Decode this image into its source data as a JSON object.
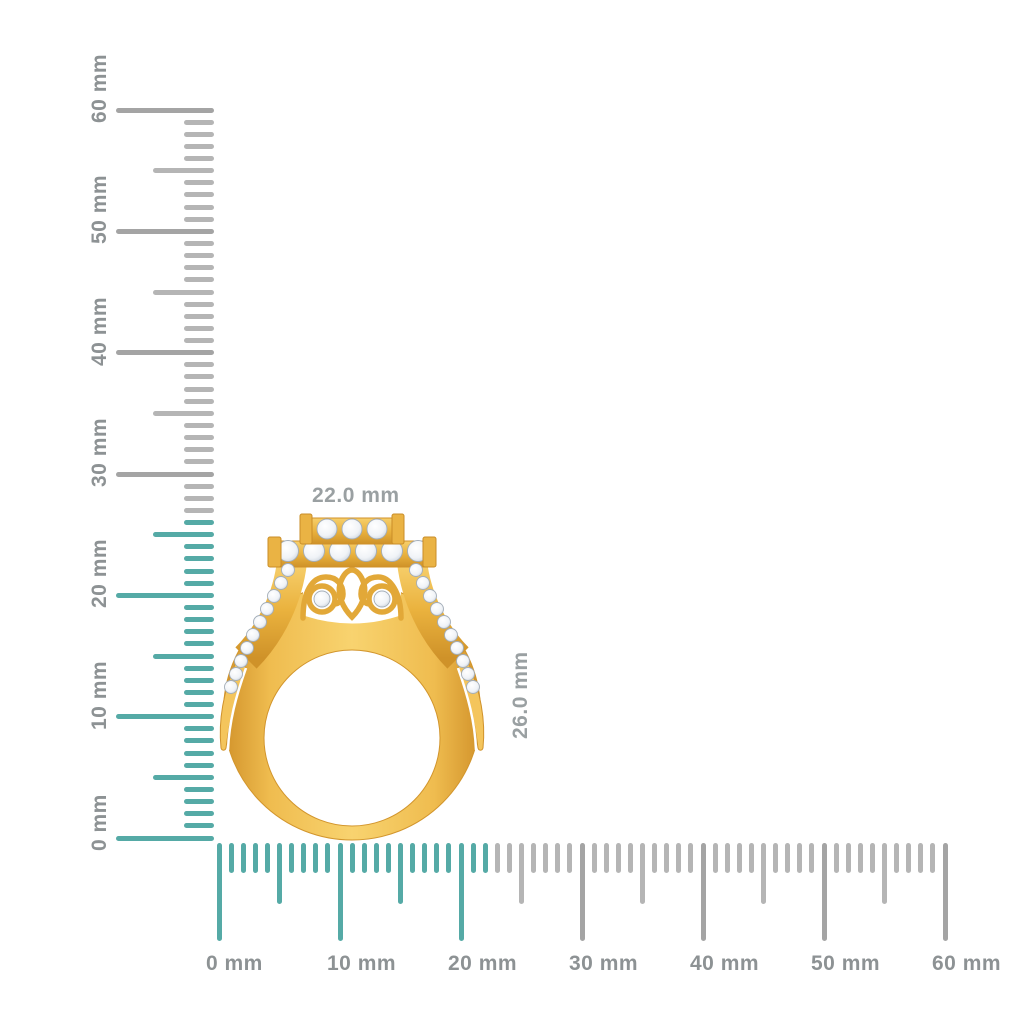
{
  "page": {
    "background": "#ffffff"
  },
  "dimension_labels": {
    "width": "22.0 mm",
    "height": "26.0 mm"
  },
  "rulers": {
    "unit": "mm",
    "vertical": {
      "orientation": "vertical",
      "min_mm": 0,
      "max_mm": 60,
      "minor_step_mm": 1,
      "medium_step_mm": 5,
      "major_step_mm": 10,
      "highlighted_range_mm": [
        0,
        26
      ],
      "labels": [
        "0 mm",
        "10 mm",
        "20 mm",
        "30 mm",
        "40 mm",
        "50 mm",
        "60 mm"
      ]
    },
    "horizontal": {
      "orientation": "horizontal",
      "min_mm": 0,
      "max_mm": 60,
      "minor_step_mm": 1,
      "medium_step_mm": 5,
      "major_step_mm": 10,
      "highlighted_range_mm": [
        0,
        22
      ],
      "labels": [
        "0 mm",
        "10 mm",
        "20 mm",
        "30 mm",
        "40 mm",
        "50 mm",
        "60 mm"
      ]
    },
    "colors": {
      "highlight": "#55aaa6",
      "tick_minor": "#b5b5b5",
      "tick_major": "#a4a4a4",
      "label_text": "#8d9294"
    }
  },
  "ring": {
    "subject": "gold-diamond-halo-ring-side-profile",
    "colors": {
      "gold": "#efb848",
      "gold_dark": "#d2932b",
      "gold_light": "#f8d36f",
      "diamond": "#ffffff"
    }
  }
}
